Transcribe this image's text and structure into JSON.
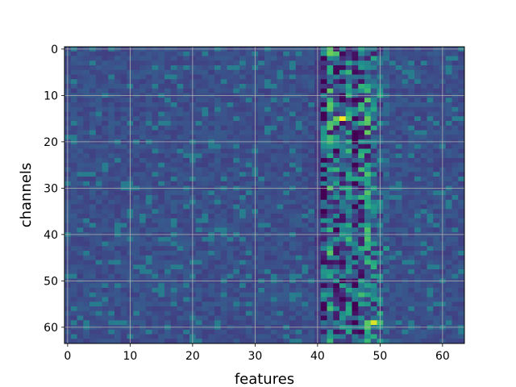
{
  "chart_data": {
    "type": "heatmap",
    "title": "",
    "xlabel": "features",
    "ylabel": "channels",
    "columns": 64,
    "rows": 64,
    "xlim": [
      -0.5,
      63.5
    ],
    "ylim": [
      63.5,
      -0.5
    ],
    "y_inverted": true,
    "x_ticks": [
      0,
      10,
      20,
      30,
      40,
      50,
      60
    ],
    "y_ticks": [
      0,
      10,
      20,
      30,
      40,
      50,
      60
    ],
    "x_tick_labels": [
      "0",
      "10",
      "20",
      "30",
      "40",
      "50",
      "60"
    ],
    "y_tick_labels": [
      "0",
      "10",
      "20",
      "30",
      "40",
      "50",
      "60"
    ],
    "grid": true,
    "colormap": "viridis",
    "value_range": [
      0,
      1
    ],
    "baseline_value": 0.25,
    "column_profiles": [
      {
        "column": 40,
        "mean": 0.2,
        "spread": 0.05
      },
      {
        "column": 41,
        "mean": 0.22,
        "spread": 0.35
      },
      {
        "column": 42,
        "mean": 0.42,
        "spread": 0.35
      },
      {
        "column": 43,
        "mean": 0.33,
        "spread": 0.35
      },
      {
        "column": 44,
        "mean": 0.3,
        "spread": 0.3
      },
      {
        "column": 45,
        "mean": 0.4,
        "spread": 0.3
      },
      {
        "column": 46,
        "mean": 0.22,
        "spread": 0.28
      },
      {
        "column": 47,
        "mean": 0.35,
        "spread": 0.35
      },
      {
        "column": 48,
        "mean": 0.42,
        "spread": 0.35
      },
      {
        "column": 49,
        "mean": 0.36,
        "spread": 0.3
      },
      {
        "column": 50,
        "mean": 0.34,
        "spread": 0.22
      },
      {
        "column": 51,
        "mean": 0.3,
        "spread": 0.1
      }
    ],
    "highlights": [
      {
        "row": 1,
        "column": 42,
        "value": 0.78
      },
      {
        "row": 1,
        "column": 43,
        "value": 0.72
      },
      {
        "row": 10,
        "column": 50,
        "value": 0.62
      },
      {
        "row": 15,
        "column": 43,
        "value": 0.78
      },
      {
        "row": 15,
        "column": 44,
        "value": 1.0
      },
      {
        "row": 15,
        "column": 45,
        "value": 0.7
      },
      {
        "row": 14,
        "column": 48,
        "value": 0.6
      },
      {
        "row": 20,
        "column": 45,
        "value": 0.62
      },
      {
        "row": 28,
        "column": 45,
        "value": 0.58
      },
      {
        "row": 28,
        "column": 46,
        "value": 0.6
      },
      {
        "row": 28,
        "column": 47,
        "value": 0.58
      },
      {
        "row": 28,
        "column": 48,
        "value": 0.56
      },
      {
        "row": 32,
        "column": 48,
        "value": 0.62
      },
      {
        "row": 33,
        "column": 48,
        "value": 0.6
      },
      {
        "row": 43,
        "column": 51,
        "value": 0.55
      },
      {
        "row": 59,
        "column": 48,
        "value": 0.75
      },
      {
        "row": 59,
        "column": 49,
        "value": 0.95
      },
      {
        "row": 59,
        "column": 50,
        "value": 0.7
      },
      {
        "row": 57,
        "column": 50,
        "value": 0.62
      },
      {
        "row": 62,
        "column": 42,
        "value": 0.55
      },
      {
        "row": 4,
        "column": 43,
        "value": 0.02
      },
      {
        "row": 4,
        "column": 44,
        "value": 0.02
      },
      {
        "row": 21,
        "column": 48,
        "value": 0.03
      },
      {
        "row": 7,
        "column": 47,
        "value": 0.05
      },
      {
        "row": 38,
        "column": 46,
        "value": 0.06
      },
      {
        "row": 46,
        "column": 42,
        "value": 0.05
      },
      {
        "row": 52,
        "column": 43,
        "value": 0.05
      }
    ]
  }
}
